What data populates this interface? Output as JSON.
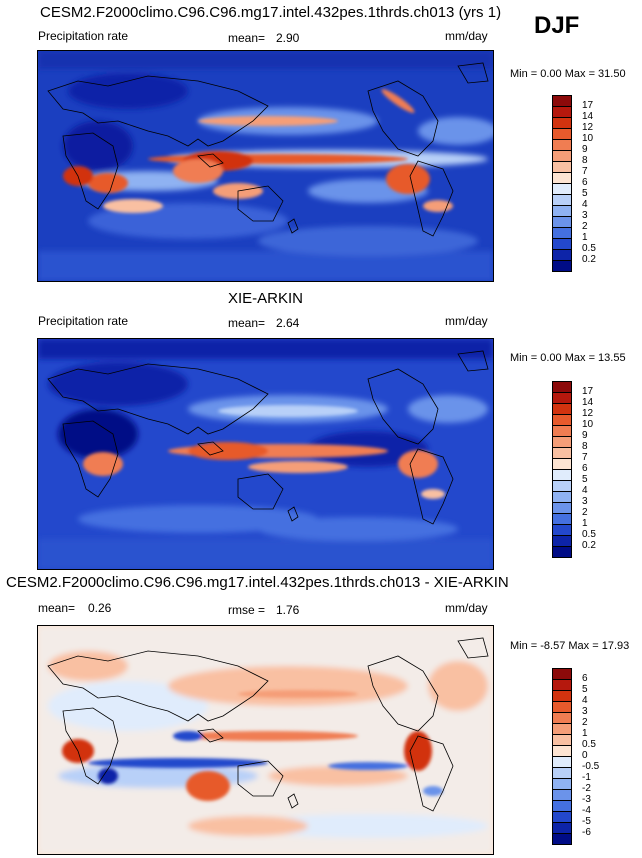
{
  "season": "DJF",
  "panels": [
    {
      "title": "CESM2.F2000climo.C96.C96.mg17.intel.432pes.1thrds.ch013 (yrs 1)",
      "variable": "Precipitation rate",
      "stat1_label": "mean=",
      "stat1_value": "2.90",
      "stat2_label": "",
      "stat2_value": "",
      "units": "mm/day",
      "range_text": "Min =   0.00 Max =  31.50",
      "colorbar_labels": [
        "17",
        "14",
        "12",
        "10",
        "9",
        "8",
        "7",
        "6",
        "5",
        "4",
        "3",
        "2",
        "1",
        "0.5",
        "0.2"
      ],
      "colorbar_colors": [
        "#8c0a0a",
        "#b5180d",
        "#d2330f",
        "#e75a2c",
        "#f07d52",
        "#f59e78",
        "#f9c0a2",
        "#fde4d2",
        "#e0ecfc",
        "#b8d0f8",
        "#8fb2f2",
        "#6b93ea",
        "#4470e0",
        "#2348cc",
        "#0d24a8",
        "#000c86"
      ]
    },
    {
      "title": "XIE-ARKIN",
      "variable": "Precipitation rate",
      "stat1_label": "mean=",
      "stat1_value": "2.64",
      "stat2_label": "",
      "stat2_value": "",
      "units": "mm/day",
      "range_text": "Min =   0.00 Max =  13.55",
      "colorbar_labels": [
        "17",
        "14",
        "12",
        "10",
        "9",
        "8",
        "7",
        "6",
        "5",
        "4",
        "3",
        "2",
        "1",
        "0.5",
        "0.2"
      ],
      "colorbar_colors": [
        "#8c0a0a",
        "#b5180d",
        "#d2330f",
        "#e75a2c",
        "#f07d52",
        "#f59e78",
        "#f9c0a2",
        "#fde4d2",
        "#e0ecfc",
        "#b8d0f8",
        "#8fb2f2",
        "#6b93ea",
        "#4470e0",
        "#2348cc",
        "#0d24a8",
        "#000c86"
      ]
    },
    {
      "title": "CESM2.F2000climo.C96.C96.mg17.intel.432pes.1thrds.ch013 - XIE-ARKIN",
      "variable": "",
      "stat1_label": "mean=",
      "stat1_value": "0.26",
      "stat2_label": "rmse =",
      "stat2_value": "1.76",
      "units": "mm/day",
      "range_text": "Min =  -8.57 Max =  17.93",
      "colorbar_labels": [
        "6",
        "5",
        "4",
        "3",
        "2",
        "1",
        "0.5",
        "0",
        "-0.5",
        "-1",
        "-2",
        "-3",
        "-4",
        "-5",
        "-6"
      ],
      "colorbar_colors": [
        "#8c0a0a",
        "#b5180d",
        "#d2330f",
        "#e75a2c",
        "#f07d52",
        "#f59e78",
        "#f9c0a2",
        "#fde4d2",
        "#e0ecfc",
        "#b8d0f8",
        "#8fb2f2",
        "#6b93ea",
        "#4470e0",
        "#2348cc",
        "#0d24a8",
        "#000c86"
      ]
    }
  ]
}
